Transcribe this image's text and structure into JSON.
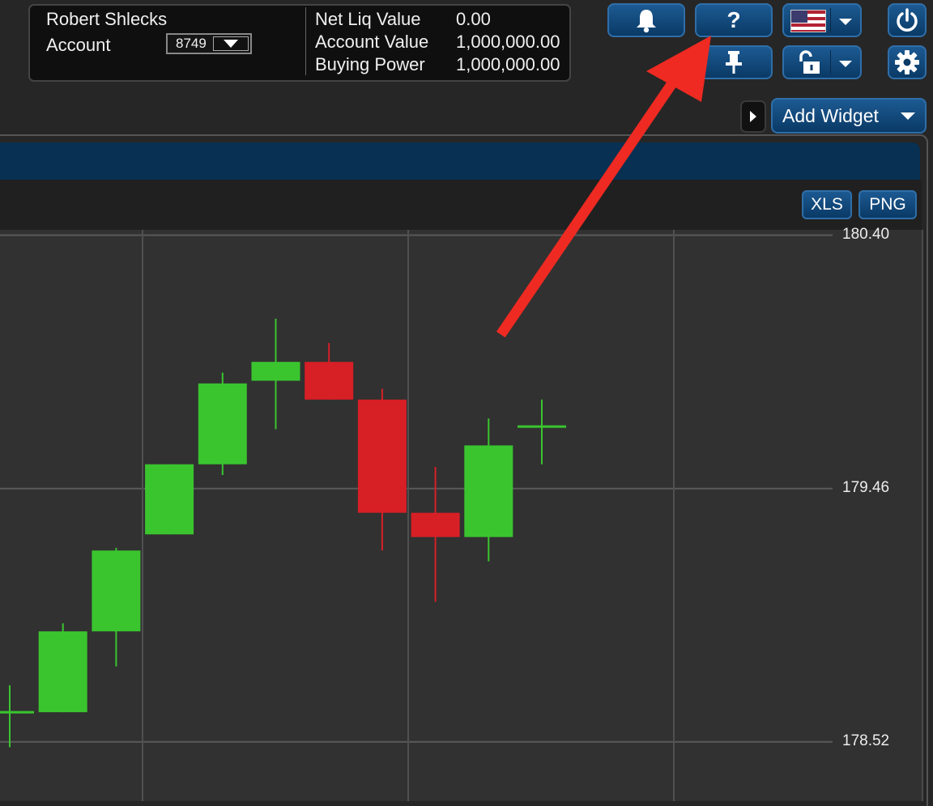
{
  "account": {
    "user_name": "Robert Shlecks",
    "account_label": "Account",
    "account_number": "8749",
    "metrics": [
      {
        "label": "Net Liq Value",
        "value": "0.00"
      },
      {
        "label": "Account Value",
        "value": "1,000,000.00"
      },
      {
        "label": "Buying Power",
        "value": "1,000,000.00"
      }
    ]
  },
  "toolbar": {
    "help_label": "?",
    "add_widget_label": "Add Widget"
  },
  "chart_toolbar": {
    "xls_label": "XLS",
    "png_label": "PNG"
  },
  "colors": {
    "up": "#3ac52f",
    "down": "#d71f26",
    "accent": "#0a3a66",
    "annotation_arrow": "#ee2a22"
  },
  "icons": [
    "bell-icon",
    "help-icon",
    "us-flag-icon",
    "power-icon",
    "pin-icon",
    "unlock-icon",
    "gear-icon",
    "chevron-down-icon",
    "chevron-right-icon"
  ],
  "chart_data": {
    "type": "candlestick",
    "ylim": [
      178.3,
      180.42
    ],
    "yticks": [
      {
        "value": 180.4,
        "label": "180.40"
      },
      {
        "value": 179.46,
        "label": "179.46"
      },
      {
        "value": 178.52,
        "label": "178.52"
      }
    ],
    "grid": true,
    "candles": [
      {
        "open": 178.63,
        "close": 178.63,
        "high": 178.73,
        "low": 178.5
      },
      {
        "open": 178.63,
        "close": 178.93,
        "high": 178.96,
        "low": 178.63
      },
      {
        "open": 178.93,
        "close": 179.23,
        "high": 179.24,
        "low": 178.8
      },
      {
        "open": 179.29,
        "close": 179.55,
        "high": 179.55,
        "low": 179.29
      },
      {
        "open": 179.55,
        "close": 179.85,
        "high": 179.89,
        "low": 179.51
      },
      {
        "open": 179.86,
        "close": 179.93,
        "high": 180.09,
        "low": 179.68
      },
      {
        "open": 179.93,
        "close": 179.79,
        "high": 180.0,
        "low": 179.79
      },
      {
        "open": 179.79,
        "close": 179.37,
        "high": 179.83,
        "low": 179.23
      },
      {
        "open": 179.37,
        "close": 179.28,
        "high": 179.54,
        "low": 179.04
      },
      {
        "open": 179.28,
        "close": 179.62,
        "high": 179.72,
        "low": 179.19
      },
      {
        "open": 179.69,
        "close": 179.69,
        "high": 179.79,
        "low": 179.55
      }
    ]
  }
}
